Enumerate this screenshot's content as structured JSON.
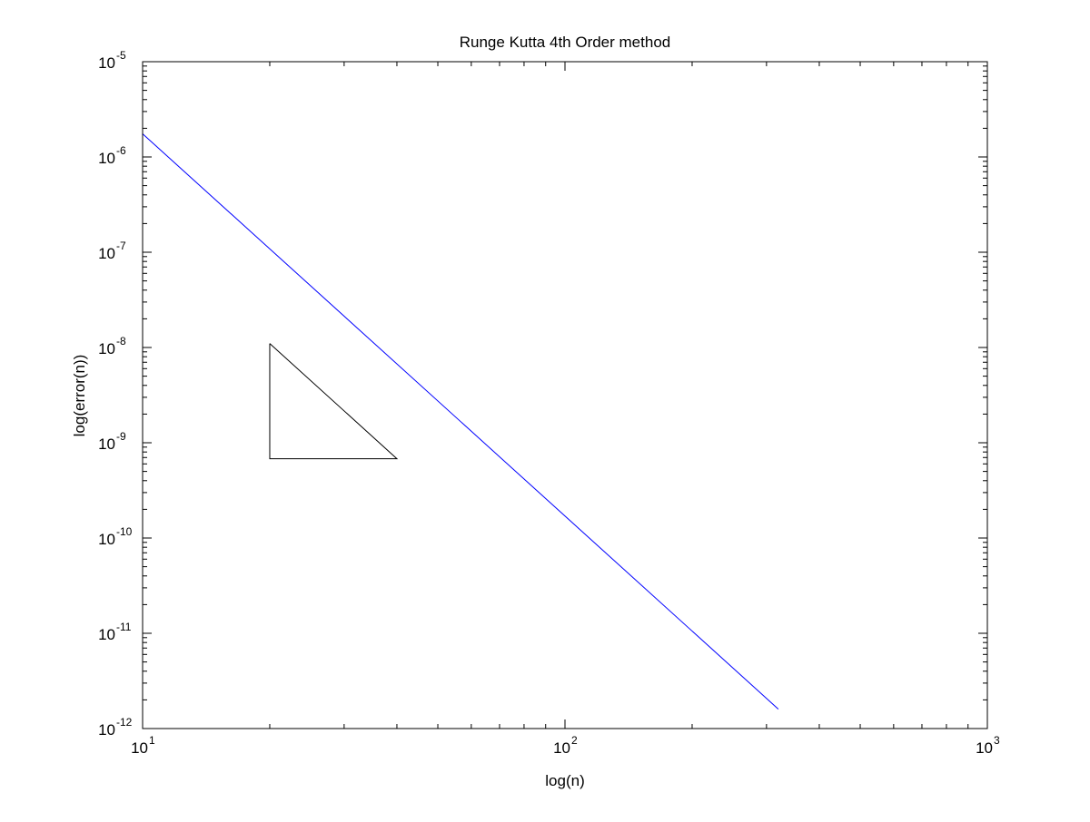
{
  "chart_data": {
    "type": "line",
    "title": "Runge Kutta 4th Order method",
    "xlabel": "log(n)",
    "ylabel": "log(error(n))",
    "xscale": "log",
    "yscale": "log",
    "xlim": [
      10,
      1000
    ],
    "ylim": [
      1e-12,
      1e-05
    ],
    "grid": false,
    "x_ticks": [
      {
        "base": "10",
        "exp": "1",
        "value": 10
      },
      {
        "base": "10",
        "exp": "2",
        "value": 100
      },
      {
        "base": "10",
        "exp": "3",
        "value": 1000
      }
    ],
    "y_ticks": [
      {
        "base": "10",
        "exp": "-12",
        "value": 1e-12
      },
      {
        "base": "10",
        "exp": "-11",
        "value": 1e-11
      },
      {
        "base": "10",
        "exp": "-10",
        "value": 1e-10
      },
      {
        "base": "10",
        "exp": "-9",
        "value": 1e-09
      },
      {
        "base": "10",
        "exp": "-8",
        "value": 1e-08
      },
      {
        "base": "10",
        "exp": "-7",
        "value": 1e-07
      },
      {
        "base": "10",
        "exp": "-6",
        "value": 1e-06
      },
      {
        "base": "10",
        "exp": "-5",
        "value": 1e-05
      }
    ],
    "series": [
      {
        "color": "#0000ff",
        "x": [
          10,
          320
        ],
        "y": [
          1.75e-06,
          1.6e-12
        ]
      }
    ],
    "slope_triangle": {
      "color": "#000000",
      "x": [
        20,
        20,
        40,
        20
      ],
      "y": [
        1.1e-08,
        6.8e-10,
        6.8e-10,
        1.1e-08
      ]
    }
  }
}
